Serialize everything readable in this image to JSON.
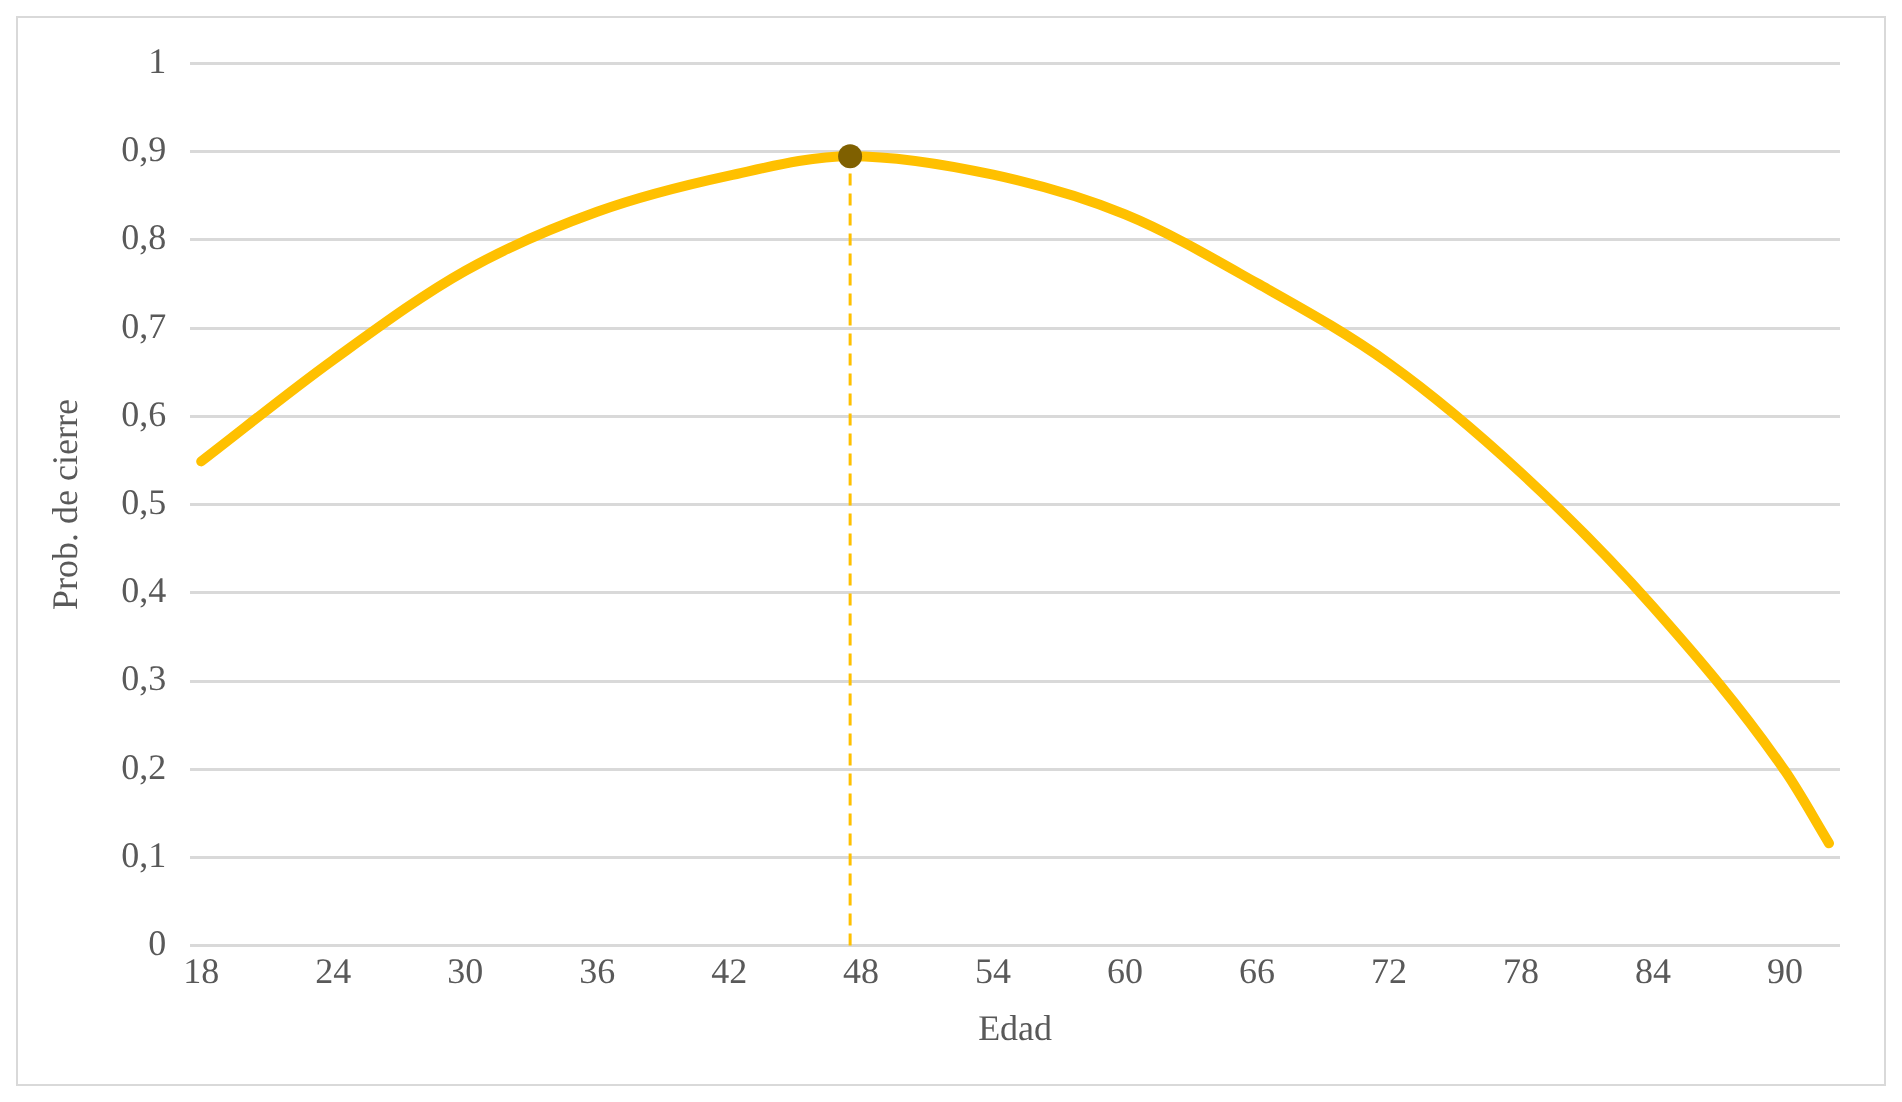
{
  "chart_data": {
    "type": "line",
    "xlabel": "Edad",
    "ylabel": "Prob. de cierre",
    "series": [
      {
        "color": "#ffc000",
        "x": [
          18,
          24,
          30,
          36,
          42,
          47.5,
          54,
          60,
          66,
          72,
          78,
          84,
          90,
          92
        ],
        "values": [
          0.549,
          0.664,
          0.765,
          0.832,
          0.873,
          0.895,
          0.874,
          0.829,
          0.751,
          0.66,
          0.536,
          0.384,
          0.198,
          0.116
        ],
        "marker": "none"
      },
      {
        "type": "scatter",
        "color": "#7f6000",
        "x": [
          47.5
        ],
        "values": [
          0.895
        ],
        "marker": "circle"
      }
    ],
    "ref_lines": [
      {
        "axis": "x",
        "value": 47.5,
        "color": "#ffc000",
        "line_style": "dashed"
      }
    ],
    "xlim": [
      17.5,
      92.5
    ],
    "xticks": [
      18,
      24,
      30,
      36,
      42,
      48,
      54,
      60,
      66,
      72,
      78,
      84,
      90
    ],
    "ylim": [
      0,
      1
    ],
    "yticks": [
      {
        "value": 0,
        "label": "0"
      },
      {
        "value": 0.1,
        "label": "0,1"
      },
      {
        "value": 0.2,
        "label": "0,2"
      },
      {
        "value": 0.3,
        "label": "0,3"
      },
      {
        "value": 0.4,
        "label": "0,4"
      },
      {
        "value": 0.5,
        "label": "0,5"
      },
      {
        "value": 0.6,
        "label": "0,6"
      },
      {
        "value": 0.7,
        "label": "0,7"
      },
      {
        "value": 0.8,
        "label": "0,8"
      },
      {
        "value": 0.9,
        "label": "0,9"
      },
      {
        "value": 1,
        "label": "1"
      }
    ],
    "grid": "y",
    "legend": false
  }
}
